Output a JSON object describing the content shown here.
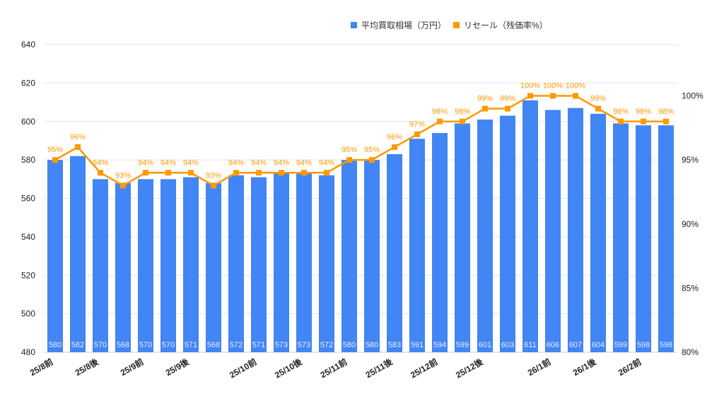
{
  "chart_data": {
    "type": "bar+line",
    "title": "",
    "xlabel": "",
    "ylabel": "",
    "ylim": [
      480,
      640
    ],
    "yticks": [
      480,
      500,
      520,
      540,
      560,
      580,
      600,
      620,
      640
    ],
    "y2lim": [
      80,
      104
    ],
    "y2ticks": [
      "80%",
      "85%",
      "90%",
      "95%",
      "100%"
    ],
    "y2tick_values": [
      80,
      85,
      90,
      95,
      100
    ],
    "grid": true,
    "legend_position": "top",
    "categories": [
      "25/8前",
      "",
      "25/8後",
      "",
      "25/9前",
      "",
      "25/9後",
      "",
      "",
      "25/10前",
      "",
      "25/10後",
      "",
      "25/11前",
      "",
      "25/11後",
      "",
      "25/12前",
      "",
      "25/12後",
      "",
      "",
      "26/1前",
      "",
      "26/1後",
      "",
      "26/2前",
      ""
    ],
    "series": [
      {
        "name": "平均買取相場（万円）",
        "type": "bar",
        "axis": "left",
        "color": "#4285f4",
        "values": [
          580,
          582,
          570,
          568,
          570,
          570,
          571,
          568,
          572,
          571,
          573,
          573,
          572,
          580,
          580,
          583,
          591,
          594,
          599,
          601,
          603,
          611,
          606,
          607,
          604,
          599,
          598,
          598
        ]
      },
      {
        "name": "リセール（残価率%）",
        "type": "line",
        "axis": "right",
        "color": "#ff9900",
        "values": [
          95,
          96,
          94,
          93,
          94,
          94,
          94,
          93,
          94,
          94,
          94,
          94,
          94,
          95,
          95,
          96,
          97,
          98,
          98,
          99,
          99,
          100,
          100,
          100,
          99,
          98,
          98,
          98
        ]
      }
    ]
  }
}
